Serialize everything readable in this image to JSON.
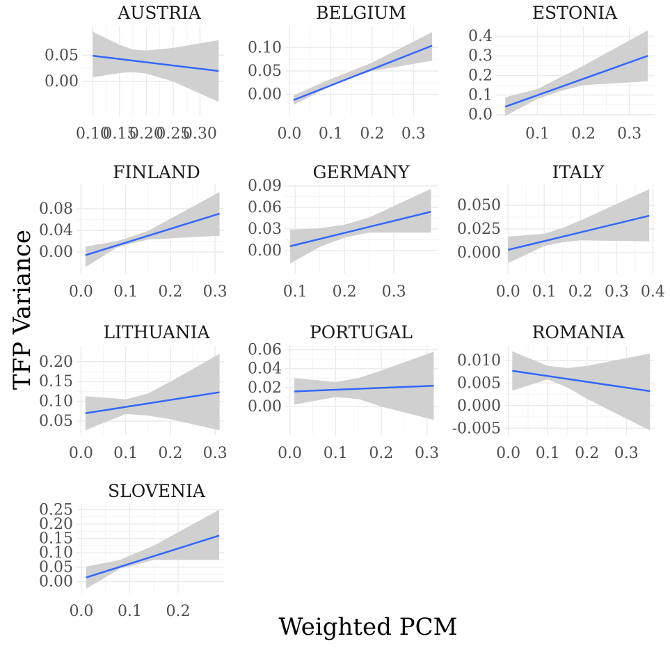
{
  "figure": {
    "xlabel": "Weighted PCM",
    "ylabel": "TFP Variance"
  },
  "style": {
    "line_color": "#3366FF",
    "band_color": "#D0D0D0",
    "grid_major": "#EBEBEB",
    "grid_minor": "#F5F5F5"
  },
  "chart_data": [
    {
      "type": "line",
      "title": "AUSTRIA",
      "xlim": [
        0.08,
        0.345
      ],
      "ylim": [
        -0.065,
        0.105
      ],
      "xticks": [
        0.1,
        0.15,
        0.2,
        0.25,
        0.3
      ],
      "xtick_labels": [
        "0.10",
        "0.15",
        "0.20",
        "0.25",
        "0.30"
      ],
      "yticks": [
        0.0,
        0.05
      ],
      "ytick_labels": [
        "0.00",
        "0.05"
      ],
      "fit": {
        "x": [
          0.1,
          0.335
        ],
        "y": [
          0.049,
          0.02
        ]
      },
      "band": {
        "x": [
          0.1,
          0.15,
          0.175,
          0.2,
          0.25,
          0.335
        ],
        "upper": [
          0.095,
          0.07,
          0.061,
          0.059,
          0.064,
          0.079
        ],
        "lower": [
          0.008,
          0.016,
          0.018,
          0.015,
          0.0,
          -0.039
        ]
      }
    },
    {
      "type": "line",
      "title": "BELGIUM",
      "xlim": [
        -0.01,
        0.36
      ],
      "ylim": [
        -0.045,
        0.145
      ],
      "xticks": [
        0.0,
        0.1,
        0.2,
        0.3
      ],
      "xtick_labels": [
        "0.0",
        "0.1",
        "0.2",
        "0.3"
      ],
      "yticks": [
        0.0,
        0.05,
        0.1
      ],
      "ytick_labels": [
        "0.00",
        "0.05",
        "0.10"
      ],
      "fit": {
        "x": [
          0.01,
          0.345
        ],
        "y": [
          -0.012,
          0.104
        ]
      },
      "band": {
        "x": [
          0.01,
          0.1,
          0.15,
          0.2,
          0.345
        ],
        "upper": [
          -0.002,
          0.033,
          0.05,
          0.068,
          0.133
        ],
        "lower": [
          -0.022,
          0.018,
          0.036,
          0.05,
          0.072
        ]
      }
    },
    {
      "type": "line",
      "title": "ESTONIA",
      "xlim": [
        0.01,
        0.355
      ],
      "ylim": [
        -0.005,
        0.45
      ],
      "xticks": [
        0.1,
        0.2,
        0.3
      ],
      "xtick_labels": [
        "0.1",
        "0.2",
        "0.3"
      ],
      "yticks": [
        0.0,
        0.1,
        0.2,
        0.3,
        0.4
      ],
      "ytick_labels": [
        "0.0",
        "0.1",
        "0.2",
        "0.3",
        "0.4"
      ],
      "fit": {
        "x": [
          0.03,
          0.34
        ],
        "y": [
          0.04,
          0.3
        ]
      },
      "band": {
        "x": [
          0.03,
          0.1,
          0.15,
          0.2,
          0.34
        ],
        "upper": [
          0.088,
          0.13,
          0.19,
          0.25,
          0.43
        ],
        "lower": [
          -0.008,
          0.08,
          0.12,
          0.15,
          0.17
        ]
      }
    },
    {
      "type": "line",
      "title": "FINLAND",
      "xlim": [
        -0.01,
        0.32
      ],
      "ylim": [
        -0.04,
        0.125
      ],
      "xticks": [
        0.0,
        0.1,
        0.2,
        0.3
      ],
      "xtick_labels": [
        "0.0",
        "0.1",
        "0.2",
        "0.3"
      ],
      "yticks": [
        0.0,
        0.04,
        0.08
      ],
      "ytick_labels": [
        "0.00",
        "0.04",
        "0.08"
      ],
      "fit": {
        "x": [
          0.01,
          0.31
        ],
        "y": [
          -0.006,
          0.071
        ]
      },
      "band": {
        "x": [
          0.01,
          0.08,
          0.1,
          0.15,
          0.31
        ],
        "upper": [
          0.01,
          0.02,
          0.025,
          0.039,
          0.111
        ],
        "lower": [
          -0.028,
          0.008,
          0.013,
          0.023,
          0.03
        ]
      }
    },
    {
      "type": "line",
      "title": "GERMANY",
      "xlim": [
        0.08,
        0.39
      ],
      "ylim": [
        -0.032,
        0.092
      ],
      "xticks": [
        0.1,
        0.2,
        0.3
      ],
      "xtick_labels": [
        "0.1",
        "0.2",
        "0.3"
      ],
      "yticks": [
        0.0,
        0.03,
        0.06,
        0.09
      ],
      "ytick_labels": [
        "0.00",
        "0.03",
        "0.06",
        "0.09"
      ],
      "fit": {
        "x": [
          0.09,
          0.375
        ],
        "y": [
          0.006,
          0.054
        ]
      },
      "band": {
        "x": [
          0.09,
          0.15,
          0.2,
          0.25,
          0.375
        ],
        "upper": [
          0.029,
          0.031,
          0.036,
          0.046,
          0.086
        ],
        "lower": [
          -0.018,
          0.005,
          0.018,
          0.025,
          0.025
        ]
      }
    },
    {
      "type": "line",
      "title": "ITALY",
      "xlim": [
        -0.01,
        0.405
      ],
      "ylim": [
        -0.022,
        0.072
      ],
      "xticks": [
        0.0,
        0.1,
        0.2,
        0.3,
        0.4
      ],
      "xtick_labels": [
        "0.0",
        "0.1",
        "0.2",
        "0.3",
        "0.4"
      ],
      "yticks": [
        0.0,
        0.025,
        0.05
      ],
      "ytick_labels": [
        "0.000",
        "0.025",
        "0.050"
      ],
      "fit": {
        "x": [
          0.0,
          0.39
        ],
        "y": [
          0.003,
          0.039
        ]
      },
      "band": {
        "x": [
          0.0,
          0.1,
          0.15,
          0.2,
          0.39
        ],
        "upper": [
          0.017,
          0.02,
          0.026,
          0.034,
          0.067
        ],
        "lower": [
          -0.011,
          0.007,
          0.011,
          0.013,
          0.012
        ]
      }
    },
    {
      "type": "line",
      "title": "LITHUANIA",
      "xlim": [
        -0.01,
        0.32
      ],
      "ylim": [
        0.015,
        0.24
      ],
      "xticks": [
        0.0,
        0.1,
        0.2,
        0.3
      ],
      "xtick_labels": [
        "0.0",
        "0.1",
        "0.2",
        "0.3"
      ],
      "yticks": [
        0.05,
        0.1,
        0.15,
        0.2
      ],
      "ytick_labels": [
        "0.05",
        "0.10",
        "0.15",
        "0.20"
      ],
      "fit": {
        "x": [
          0.01,
          0.31
        ],
        "y": [
          0.07,
          0.123
        ]
      },
      "band": {
        "x": [
          0.01,
          0.1,
          0.15,
          0.2,
          0.31
        ],
        "upper": [
          0.113,
          0.105,
          0.12,
          0.15,
          0.22
        ],
        "lower": [
          0.027,
          0.068,
          0.064,
          0.055,
          0.027
        ]
      }
    },
    {
      "type": "line",
      "title": "PORTUGAL",
      "xlim": [
        -0.01,
        0.325
      ],
      "ylim": [
        -0.03,
        0.064
      ],
      "xticks": [
        0.0,
        0.1,
        0.2,
        0.3
      ],
      "xtick_labels": [
        "0.0",
        "0.1",
        "0.2",
        "0.3"
      ],
      "yticks": [
        0.0,
        0.02,
        0.04,
        0.06
      ],
      "ytick_labels": [
        "0.00",
        "0.02",
        "0.04",
        "0.06"
      ],
      "fit": {
        "x": [
          0.01,
          0.315
        ],
        "y": [
          0.016,
          0.022
        ]
      },
      "band": {
        "x": [
          0.01,
          0.1,
          0.15,
          0.2,
          0.315
        ],
        "upper": [
          0.03,
          0.026,
          0.03,
          0.038,
          0.058
        ],
        "lower": [
          0.002,
          0.01,
          0.008,
          0.0,
          -0.014
        ]
      }
    },
    {
      "type": "line",
      "title": "ROMANIA",
      "xlim": [
        -0.01,
        0.372
      ],
      "ylim": [
        -0.0065,
        0.0132
      ],
      "xticks": [
        0.0,
        0.1,
        0.2,
        0.3
      ],
      "xtick_labels": [
        "0.0",
        "0.1",
        "0.2",
        "0.3"
      ],
      "yticks": [
        -0.005,
        0.0,
        0.005,
        0.01
      ],
      "ytick_labels": [
        "-0.005",
        "0.000",
        "0.005",
        "0.010"
      ],
      "fit": {
        "x": [
          0.01,
          0.36
        ],
        "y": [
          0.0077,
          0.0032
        ]
      },
      "band": {
        "x": [
          0.01,
          0.1,
          0.15,
          0.2,
          0.36
        ],
        "upper": [
          0.012,
          0.0088,
          0.0083,
          0.0088,
          0.0115
        ],
        "lower": [
          0.0033,
          0.0058,
          0.004,
          0.0015,
          -0.0055
        ]
      }
    },
    {
      "type": "line",
      "title": "SLOVENIA",
      "xlim": [
        -0.01,
        0.295
      ],
      "ylim": [
        -0.04,
        0.27
      ],
      "xticks": [
        0.0,
        0.1,
        0.2
      ],
      "xtick_labels": [
        "0.0",
        "0.1",
        "0.2"
      ],
      "yticks": [
        0.0,
        0.05,
        0.1,
        0.15,
        0.2,
        0.25
      ],
      "ytick_labels": [
        "0.00",
        "0.05",
        "0.10",
        "0.15",
        "0.20",
        "0.25"
      ],
      "fit": {
        "x": [
          0.01,
          0.285
        ],
        "y": [
          0.014,
          0.16
        ]
      },
      "band": {
        "x": [
          0.01,
          0.08,
          0.1,
          0.15,
          0.285
        ],
        "upper": [
          0.052,
          0.075,
          0.09,
          0.125,
          0.25
        ],
        "lower": [
          -0.025,
          0.045,
          0.053,
          0.075,
          0.075
        ]
      }
    }
  ]
}
